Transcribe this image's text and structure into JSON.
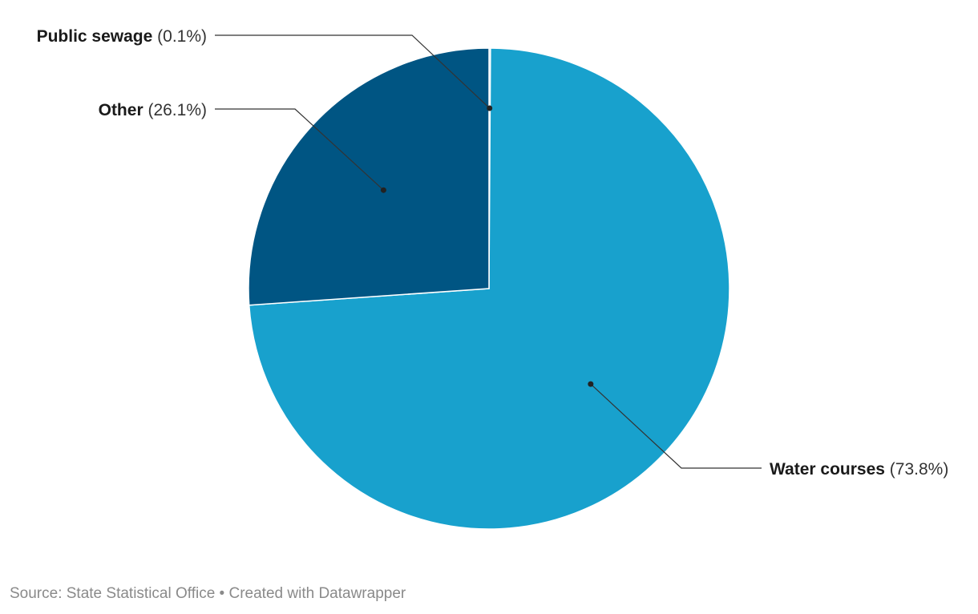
{
  "chart_data": {
    "type": "pie",
    "slices": [
      {
        "name": "Public sewage",
        "value": 0.1,
        "label": "(0.1%)",
        "color": "#66b8d8"
      },
      {
        "name": "Water courses",
        "value": 73.8,
        "label": "(73.8%)",
        "color": "#18a1cd"
      },
      {
        "name": "Other",
        "value": 26.1,
        "label": "(26.1%)",
        "color": "#005583"
      }
    ],
    "start": "12 o'clock",
    "direction": "clockwise",
    "legend": "none",
    "labels": "outside with leader lines"
  },
  "footer": {
    "source": "Source: State Statistical Office",
    "separator": " • ",
    "credit": "Created with Datawrapper"
  }
}
